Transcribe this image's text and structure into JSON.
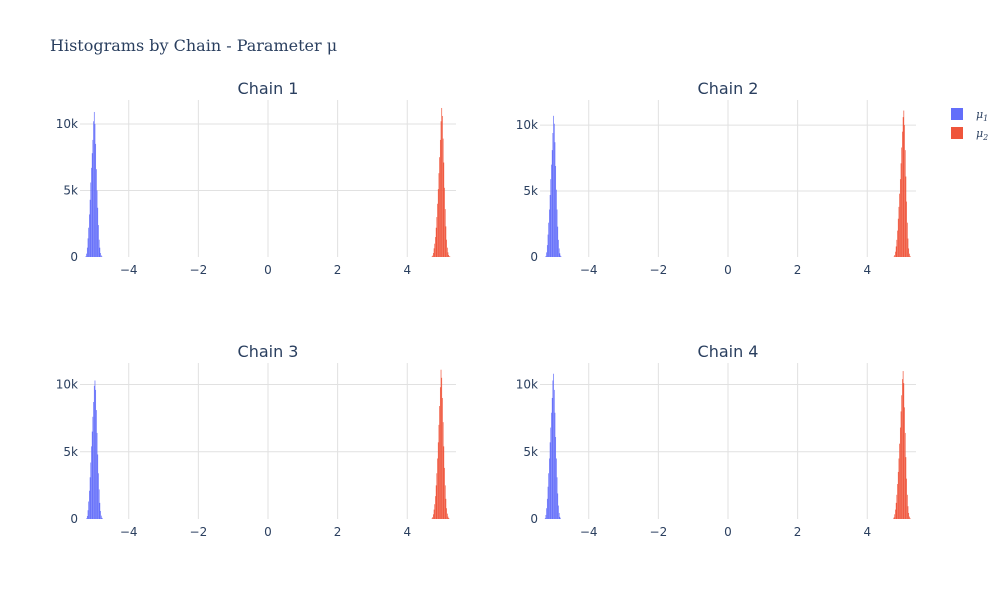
{
  "figure": {
    "title": "Histograms by Chain - Parameter μ"
  },
  "legend": {
    "items": [
      {
        "label": "μ",
        "sub": "1",
        "color": "#636efa"
      },
      {
        "label": "μ",
        "sub": "2",
        "color": "#ef553b"
      }
    ]
  },
  "chart_data": [
    {
      "type": "bar",
      "title": "Chain 1",
      "xlabel": "",
      "ylabel": "",
      "xlim": [
        -5.4,
        5.4
      ],
      "ylim": [
        0,
        11800
      ],
      "x_ticks": [
        -4,
        -2,
        0,
        2,
        4
      ],
      "x_tick_labels": [
        "−4",
        "−2",
        "0",
        "2",
        "4"
      ],
      "y_ticks": [
        0,
        5000,
        10000
      ],
      "y_tick_labels": [
        "0",
        "5k",
        "10k"
      ],
      "grid": true,
      "series": [
        {
          "name": "μ1",
          "color": "#636efa",
          "x": [
            -5.23,
            -5.21,
            -5.19,
            -5.17,
            -5.15,
            -5.13,
            -5.11,
            -5.09,
            -5.07,
            -5.05,
            -5.03,
            -5.01,
            -4.99,
            -4.97,
            -4.95,
            -4.93,
            -4.91,
            -4.89,
            -4.87,
            -4.85,
            -4.83,
            -4.81,
            -4.79,
            -4.77
          ],
          "values": [
            60,
            250,
            700,
            1400,
            2200,
            3200,
            4300,
            5600,
            6700,
            7800,
            8800,
            10200,
            10900,
            10000,
            8500,
            6600,
            5000,
            3700,
            2400,
            1300,
            700,
            300,
            120,
            40
          ]
        },
        {
          "name": "μ2",
          "color": "#ef553b",
          "x": [
            4.71,
            4.73,
            4.75,
            4.77,
            4.79,
            4.81,
            4.83,
            4.85,
            4.87,
            4.89,
            4.91,
            4.93,
            4.95,
            4.97,
            4.99,
            5.01,
            5.03,
            5.05,
            5.07,
            5.09,
            5.11,
            5.13,
            5.15,
            5.17,
            5.19,
            5.21,
            5.23
          ],
          "values": [
            30,
            100,
            300,
            650,
            1000,
            1500,
            2200,
            3000,
            4000,
            5100,
            6300,
            7500,
            8800,
            10200,
            11200,
            10600,
            8900,
            7100,
            5200,
            3600,
            2300,
            1300,
            700,
            350,
            150,
            60,
            20
          ]
        }
      ]
    },
    {
      "type": "bar",
      "title": "Chain 2",
      "xlabel": "",
      "ylabel": "",
      "xlim": [
        -5.4,
        5.4
      ],
      "ylim": [
        0,
        11900
      ],
      "x_ticks": [
        -4,
        -2,
        0,
        2,
        4
      ],
      "x_tick_labels": [
        "−4",
        "−2",
        "0",
        "2",
        "4"
      ],
      "y_ticks": [
        0,
        5000,
        10000
      ],
      "y_tick_labels": [
        "0",
        "5k",
        "10k"
      ],
      "grid": true,
      "series": [
        {
          "name": "μ1",
          "color": "#636efa",
          "x": [
            -5.23,
            -5.21,
            -5.19,
            -5.17,
            -5.15,
            -5.13,
            -5.11,
            -5.09,
            -5.07,
            -5.05,
            -5.03,
            -5.01,
            -4.99,
            -4.97,
            -4.95,
            -4.93,
            -4.91,
            -4.89,
            -4.87,
            -4.85,
            -4.83,
            -4.81,
            -4.79
          ],
          "values": [
            80,
            350,
            900,
            1700,
            2600,
            3600,
            4700,
            5900,
            7000,
            8100,
            9400,
            10700,
            10100,
            8700,
            6900,
            5100,
            3600,
            2300,
            1300,
            650,
            280,
            100,
            30
          ]
        },
        {
          "name": "μ2",
          "color": "#ef553b",
          "x": [
            4.77,
            4.79,
            4.81,
            4.83,
            4.85,
            4.87,
            4.89,
            4.91,
            4.93,
            4.95,
            4.97,
            4.99,
            5.01,
            5.03,
            5.05,
            5.07,
            5.09,
            5.11,
            5.13,
            5.15,
            5.17,
            5.19,
            5.21,
            5.23
          ],
          "values": [
            40,
            150,
            400,
            800,
            1300,
            2000,
            2900,
            3800,
            4800,
            5900,
            7100,
            8300,
            9500,
            10600,
            11100,
            10000,
            8100,
            6100,
            4200,
            2600,
            1400,
            650,
            250,
            80
          ]
        }
      ]
    },
    {
      "type": "bar",
      "title": "Chain 3",
      "xlabel": "",
      "ylabel": "",
      "xlim": [
        -5.4,
        5.4
      ],
      "ylim": [
        0,
        11600
      ],
      "x_ticks": [
        -4,
        -2,
        0,
        2,
        4
      ],
      "x_tick_labels": [
        "−4",
        "−2",
        "0",
        "2",
        "4"
      ],
      "y_ticks": [
        0,
        5000,
        10000
      ],
      "y_tick_labels": [
        "0",
        "5k",
        "10k"
      ],
      "grid": true,
      "series": [
        {
          "name": "μ1",
          "color": "#636efa",
          "x": [
            -5.21,
            -5.19,
            -5.17,
            -5.15,
            -5.13,
            -5.11,
            -5.09,
            -5.07,
            -5.05,
            -5.03,
            -5.01,
            -4.99,
            -4.97,
            -4.95,
            -4.93,
            -4.91,
            -4.89,
            -4.87,
            -4.85,
            -4.83,
            -4.81,
            -4.79,
            -4.77,
            -4.75
          ],
          "values": [
            50,
            220,
            650,
            1300,
            2100,
            3100,
            4200,
            5400,
            6500,
            7600,
            8700,
            9900,
            10300,
            9600,
            8100,
            6400,
            4800,
            3400,
            2200,
            1200,
            600,
            250,
            90,
            30
          ]
        },
        {
          "name": "μ2",
          "color": "#ef553b",
          "x": [
            4.71,
            4.73,
            4.75,
            4.77,
            4.79,
            4.81,
            4.83,
            4.85,
            4.87,
            4.89,
            4.91,
            4.93,
            4.95,
            4.97,
            4.99,
            5.01,
            5.03,
            5.05,
            5.07,
            5.09,
            5.11,
            5.13,
            5.15,
            5.17,
            5.19,
            5.21
          ],
          "values": [
            40,
            130,
            350,
            700,
            1100,
            1700,
            2500,
            3400,
            4500,
            5700,
            7000,
            8400,
            9800,
            11100,
            10500,
            9000,
            7200,
            5400,
            3800,
            2500,
            1500,
            800,
            400,
            180,
            70,
            20
          ]
        }
      ]
    },
    {
      "type": "bar",
      "title": "Chain 4",
      "xlabel": "",
      "ylabel": "",
      "xlim": [
        -5.4,
        5.4
      ],
      "ylim": [
        0,
        11600
      ],
      "x_ticks": [
        -4,
        -2,
        0,
        2,
        4
      ],
      "x_tick_labels": [
        "−4",
        "−2",
        "0",
        "2",
        "4"
      ],
      "y_ticks": [
        0,
        5000,
        10000
      ],
      "y_tick_labels": [
        "0",
        "5k",
        "10k"
      ],
      "grid": true,
      "series": [
        {
          "name": "μ1",
          "color": "#636efa",
          "x": [
            -5.25,
            -5.23,
            -5.21,
            -5.19,
            -5.17,
            -5.15,
            -5.13,
            -5.11,
            -5.09,
            -5.07,
            -5.05,
            -5.03,
            -5.01,
            -4.99,
            -4.97,
            -4.95,
            -4.93,
            -4.91,
            -4.89,
            -4.87,
            -4.85,
            -4.83,
            -4.81
          ],
          "values": [
            60,
            300,
            800,
            1500,
            2400,
            3400,
            4500,
            5700,
            6800,
            7900,
            9000,
            10300,
            10800,
            9600,
            7900,
            6100,
            4500,
            3100,
            1900,
            1000,
            450,
            160,
            50
          ]
        },
        {
          "name": "μ2",
          "color": "#ef553b",
          "x": [
            4.75,
            4.77,
            4.79,
            4.81,
            4.83,
            4.85,
            4.87,
            4.89,
            4.91,
            4.93,
            4.95,
            4.97,
            4.99,
            5.01,
            5.03,
            5.05,
            5.07,
            5.09,
            5.11,
            5.13,
            5.15,
            5.17,
            5.19,
            5.21,
            5.23
          ],
          "values": [
            30,
            120,
            350,
            700,
            1200,
            1800,
            2600,
            3500,
            4500,
            5600,
            6800,
            8000,
            9200,
            10400,
            11000,
            10100,
            8300,
            6400,
            4600,
            3000,
            1800,
            950,
            450,
            180,
            60
          ]
        }
      ]
    }
  ]
}
